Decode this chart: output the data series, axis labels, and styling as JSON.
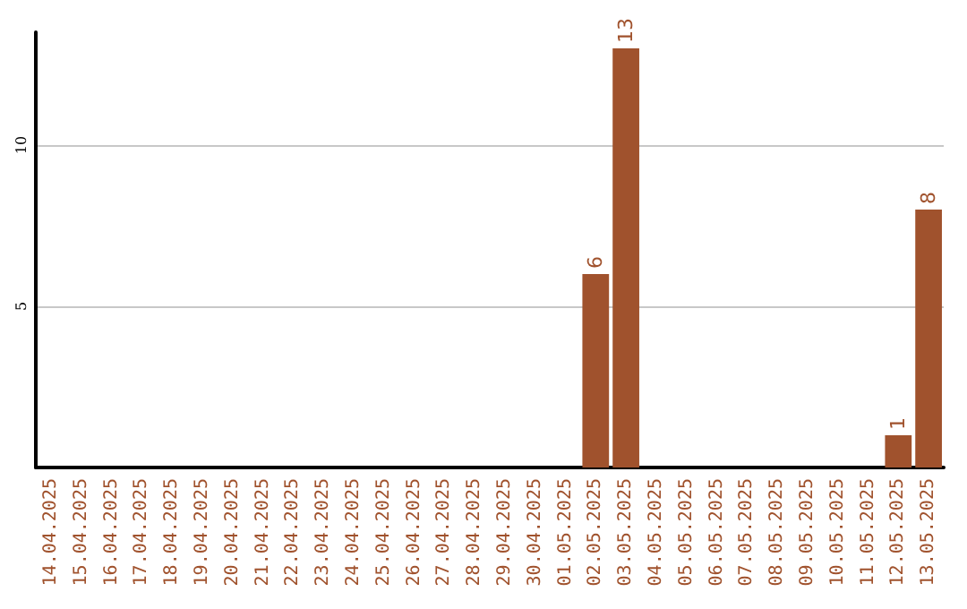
{
  "chart_data": {
    "type": "bar",
    "categories": [
      "14.04.2025",
      "15.04.2025",
      "16.04.2025",
      "17.04.2025",
      "18.04.2025",
      "19.04.2025",
      "20.04.2025",
      "21.04.2025",
      "22.04.2025",
      "23.04.2025",
      "24.04.2025",
      "25.04.2025",
      "26.04.2025",
      "27.04.2025",
      "28.04.2025",
      "29.04.2025",
      "30.04.2025",
      "01.05.2025",
      "02.05.2025",
      "03.05.2025",
      "04.05.2025",
      "05.05.2025",
      "06.05.2025",
      "07.05.2025",
      "08.05.2025",
      "09.05.2025",
      "10.05.2025",
      "11.05.2025",
      "12.05.2025",
      "13.05.2025"
    ],
    "values": [
      0,
      0,
      0,
      0,
      0,
      0,
      0,
      0,
      0,
      0,
      0,
      0,
      0,
      0,
      0,
      0,
      0,
      0,
      6,
      13,
      0,
      0,
      0,
      0,
      0,
      0,
      0,
      0,
      1,
      8
    ],
    "value_labels": [
      null,
      null,
      null,
      null,
      null,
      null,
      null,
      null,
      null,
      null,
      null,
      null,
      null,
      null,
      null,
      null,
      null,
      null,
      "6",
      "13",
      null,
      null,
      null,
      null,
      null,
      null,
      null,
      null,
      "1",
      "8"
    ],
    "color": "#a0522d",
    "ylim": [
      0,
      13.5
    ],
    "yticks": [
      5,
      10
    ],
    "grid": "y"
  }
}
